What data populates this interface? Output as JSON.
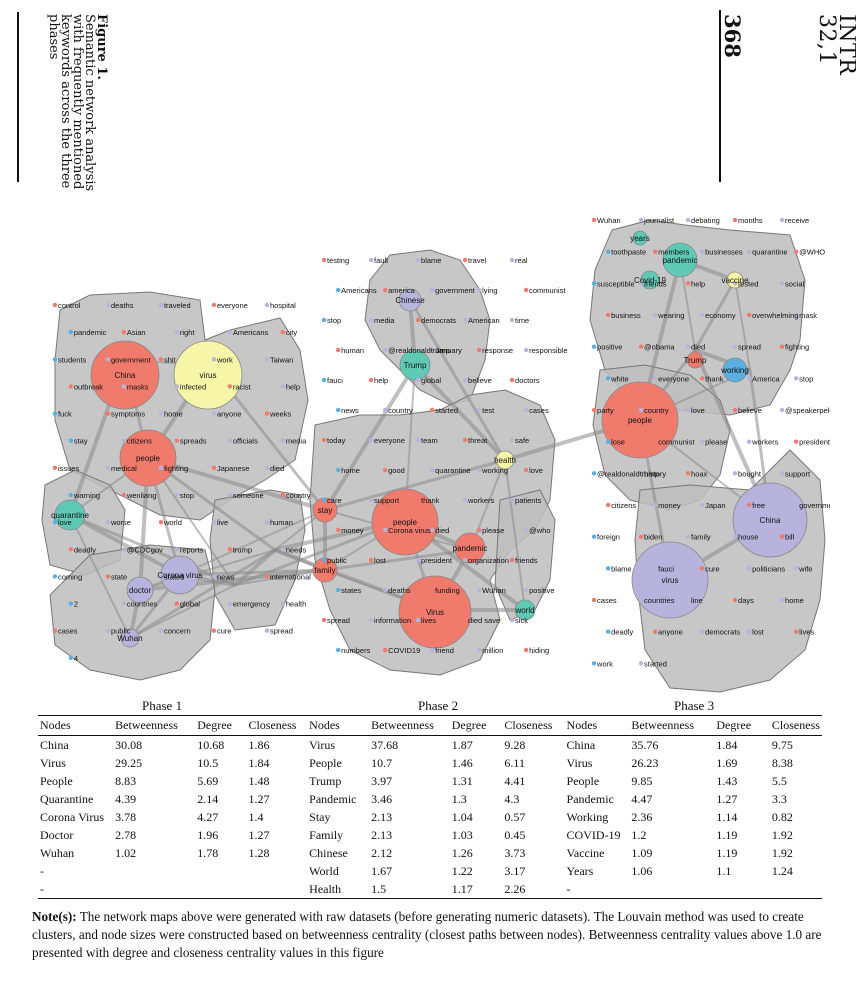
{
  "header": {
    "journal_line1": "INTR",
    "journal_line2": "32,1",
    "page_number": "368",
    "figure_label": "Figure 1.",
    "figure_caption": "Semantic network analysis with frequently mentioned keywords across the three phases"
  },
  "phases": [
    {
      "label": "Phase 1"
    },
    {
      "label": "Phase 2"
    },
    {
      "label": "Phase 3"
    }
  ],
  "network": {
    "colors": {
      "red": "#f07a6c",
      "yellow": "#f7f5a8",
      "teal": "#5fc9b6",
      "purple": "#b7b3dc",
      "blue": "#5aaee0",
      "hull": "#bdbdbd",
      "edge": "#8a8a8a"
    },
    "phase1": {
      "hubs": [
        {
          "label": "China",
          "color": "red",
          "size": 30.08
        },
        {
          "label": "virus",
          "color": "yellow",
          "size": 29.25
        },
        {
          "label": "people",
          "color": "red",
          "size": 8.83
        },
        {
          "label": "quarantine",
          "color": "teal",
          "size": 4.39
        },
        {
          "label": "Corona virus",
          "color": "purple",
          "size": 3.78
        },
        {
          "label": "doctor",
          "color": "purple",
          "size": 2.78
        },
        {
          "label": "Wuhan",
          "color": "purple",
          "size": 1.02
        }
      ],
      "words": [
        "control",
        "deaths",
        "traveled",
        "everyone",
        "hospital",
        "pandemic",
        "Asian",
        "right",
        "Americans",
        "city",
        "students",
        "government",
        "shit",
        "work",
        "Taiwan",
        "outbreak",
        "masks",
        "infected",
        "racist",
        "help",
        "fuck",
        "symptoms",
        "home",
        "anyone",
        "weeks",
        "stay",
        "citizens",
        "spreads",
        "officials",
        "media",
        "issues",
        "medical",
        "fighting",
        "Japanese",
        "died",
        "warning",
        "wenliang",
        "stop",
        "someone",
        "country",
        "love",
        "worse",
        "world",
        "live",
        "human",
        "deadly",
        "@CDCgov",
        "reports",
        "trump",
        "needs",
        "coming",
        "state",
        "stated",
        "news",
        "international",
        "2",
        "countries",
        "global",
        "emergency",
        "health",
        "cases",
        "public",
        "concern",
        "cure",
        "spread",
        "4"
      ]
    },
    "phase2": {
      "hubs": [
        {
          "label": "Virus",
          "color": "red",
          "size": 37.68
        },
        {
          "label": "people",
          "color": "red",
          "size": 10.7
        },
        {
          "label": "Trump",
          "color": "teal",
          "size": 3.97
        },
        {
          "label": "pandemic",
          "color": "red",
          "size": 3.46
        },
        {
          "label": "stay",
          "color": "red",
          "size": 2.13
        },
        {
          "label": "family",
          "color": "red",
          "size": 2.13
        },
        {
          "label": "Chinese",
          "color": "purple",
          "size": 2.12
        },
        {
          "label": "world",
          "color": "teal",
          "size": 1.67
        },
        {
          "label": "health",
          "color": "yellow",
          "size": 1.5
        }
      ],
      "words": [
        "testing",
        "fault",
        "blame",
        "travel",
        "real",
        "Americans",
        "america",
        "government",
        "lying",
        "communist",
        "stop",
        "media",
        "democrats",
        "American",
        "time",
        "human",
        "@realdonaldtrump",
        "January",
        "response",
        "responsible",
        "fauci",
        "help",
        "global",
        "believe",
        "doctors",
        "news",
        "country",
        "started",
        "test",
        "cases",
        "today",
        "everyone",
        "team",
        "threat",
        "safe",
        "home",
        "good",
        "quarantine",
        "working",
        "love",
        "care",
        "support",
        "thank",
        "workers",
        "patients",
        "money",
        "Corona virus",
        "died",
        "please",
        "@who",
        "public",
        "lost",
        "president",
        "organization",
        "friends",
        "states",
        "deaths",
        "funding",
        "Wuhan",
        "positive",
        "spread",
        "information",
        "lives",
        "died save",
        "sick",
        "numbers",
        "COVID19",
        "friend",
        "million",
        "hiding"
      ]
    },
    "phase3": {
      "hubs": [
        {
          "label": "people",
          "color": "red",
          "size": 9.85
        },
        {
          "label": "China",
          "color": "purple",
          "size": 35.76
        },
        {
          "label": "virus",
          "color": "purple",
          "size": 26.23
        },
        {
          "label": "pandemic",
          "color": "teal",
          "size": 4.47
        },
        {
          "label": "working",
          "color": "blue",
          "size": 2.36
        },
        {
          "label": "Covid-19",
          "color": "teal",
          "size": 1.2
        },
        {
          "label": "vaccine",
          "color": "yellow",
          "size": 1.09
        },
        {
          "label": "years",
          "color": "teal",
          "size": 1.06
        },
        {
          "label": "Trump",
          "color": "red",
          "size": 1.0
        }
      ],
      "words": [
        "Wuhan",
        "journalist",
        "debating",
        "months",
        "receive",
        "toothpaste",
        "members",
        "businesses",
        "quarantine",
        "@WHO",
        "susceptible",
        "friends",
        "help",
        "tested",
        "social",
        "business",
        "wearing",
        "economy",
        "overwhelming",
        "mask",
        "positive",
        "@obama",
        "died",
        "spread",
        "fighting",
        "white",
        "everyone",
        "thank",
        "America",
        "stop",
        "party",
        "country",
        "love",
        "believe",
        "@speakerpelosi",
        "lose",
        "communist",
        "please",
        "workers",
        "president",
        "@realdonaldtrump",
        "history",
        "hoax",
        "bought",
        "support",
        "citizens",
        "money",
        "Japan",
        "free",
        "government",
        "foreign",
        "biden",
        "family",
        "house",
        "bill",
        "blame",
        "fauci",
        "cure",
        "politicians",
        "wife",
        "cases",
        "countries",
        "line",
        "days",
        "home",
        "deadly",
        "anyone",
        "democrats",
        "lost",
        "lives",
        "work",
        "started"
      ]
    }
  },
  "table": {
    "headers": [
      "Nodes",
      "Betweenness",
      "Degree",
      "Closeness",
      "Nodes",
      "Betweenness",
      "Degree",
      "Closeness",
      "Nodes",
      "Betweenness",
      "Degree",
      "Closeness"
    ],
    "rows": [
      [
        "China",
        "30.08",
        "10.68",
        "1.86",
        "Virus",
        "37.68",
        "1.87",
        "9.28",
        "China",
        "35.76",
        "1.84",
        "9.75"
      ],
      [
        "Virus",
        "29.25",
        "10.5",
        "1.84",
        "People",
        "10.7",
        "1.46",
        "6.11",
        "Virus",
        "26.23",
        "1.69",
        "8.38"
      ],
      [
        "People",
        "8.83",
        "5.69",
        "1.48",
        "Trump",
        "3.97",
        "1.31",
        "4.41",
        "People",
        "9.85",
        "1.43",
        "5.5"
      ],
      [
        "Quarantine",
        "4.39",
        "2.14",
        "1.27",
        "Pandemic",
        "3.46",
        "1.3",
        "4.3",
        "Pandemic",
        "4.47",
        "1.27",
        "3.3"
      ],
      [
        "Corona Virus",
        "3.78",
        "4.27",
        "1.4",
        "Stay",
        "2.13",
        "1.04",
        "0.57",
        "Working",
        "2.36",
        "1.14",
        "0.82"
      ],
      [
        "Doctor",
        "2.78",
        "1.96",
        "1.27",
        "Family",
        "2.13",
        "1.03",
        "0.45",
        "COVID-19",
        "1.2",
        "1.19",
        "1.92"
      ],
      [
        "Wuhan",
        "1.02",
        "1.78",
        "1.28",
        "Chinese",
        "2.12",
        "1.26",
        "3.73",
        "Vaccine",
        "1.09",
        "1.19",
        "1.92"
      ],
      [
        "-",
        "",
        "",
        "",
        "World",
        "1.67",
        "1.22",
        "3.17",
        "Years",
        "1.06",
        "1.1",
        "1.24"
      ],
      [
        "-",
        "",
        "",
        "",
        "Health",
        "1.5",
        "1.17",
        "2.26",
        "-",
        "",
        "",
        ""
      ]
    ]
  },
  "note": {
    "label": "Note(s):",
    "text": " The network maps above were generated with raw datasets (before generating numeric datasets). The Louvain method was used to create clusters, and node sizes were constructed based on betweenness centrality (closest paths between nodes). Betweenness centrality values above 1.0 are presented with degree and closeness centrality values in this figure"
  }
}
